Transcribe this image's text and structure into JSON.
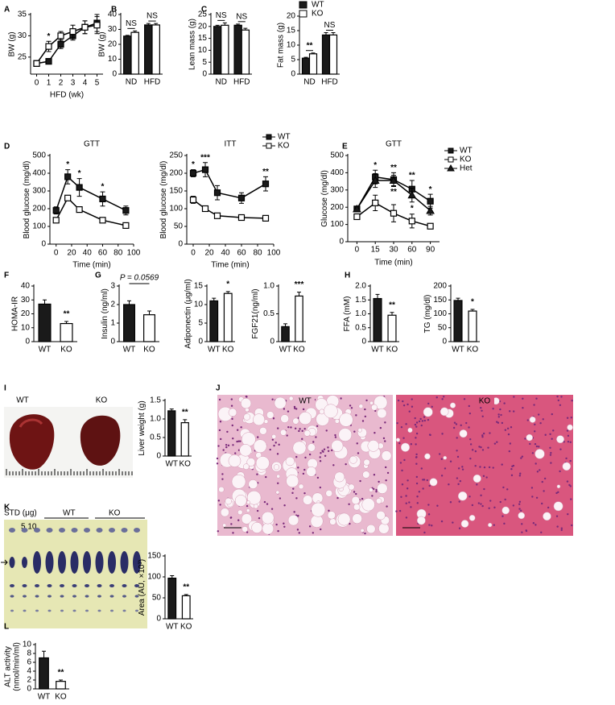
{
  "chart_data": [
    {
      "type": "line",
      "panel": "A",
      "ylabel": "BW (g)",
      "xlabel": "HFD (wk)",
      "x": [
        0,
        1,
        2,
        3,
        4,
        5
      ],
      "xlim": [
        -0.5,
        5.5
      ],
      "xticks": [
        0,
        1,
        2,
        3,
        4,
        5
      ],
      "ylim": [
        21,
        35
      ],
      "yticks": [
        25,
        30,
        35
      ],
      "series": [
        {
          "marker": "square",
          "fill": "#1a1a1a",
          "values": [
            23.5,
            24,
            28,
            30,
            32,
            33
          ],
          "errors": [
            0.5,
            0.5,
            1,
            1,
            1.5,
            2
          ],
          "significance": [
            null,
            "*",
            null,
            null,
            null,
            null
          ]
        },
        {
          "marker": "square",
          "fill": "#ffffff",
          "values": [
            23.5,
            27.5,
            30,
            31,
            32,
            32.5
          ],
          "errors": [
            0.5,
            1.2,
            1,
            1.5,
            1.5,
            2
          ]
        }
      ]
    },
    {
      "type": "bar",
      "panel": "B",
      "ylabel": "BW (g)",
      "categories": [
        "ND",
        "HFD"
      ],
      "ylim": [
        0,
        40
      ],
      "yticks": [
        0,
        10,
        20,
        30,
        40
      ],
      "brackets": true,
      "significance": [
        "NS",
        "NS"
      ],
      "series": [
        {
          "color": "#1a1a1a",
          "values": [
            25.5,
            33
          ],
          "errors": [
            0.5,
            1
          ]
        },
        {
          "color": "#ffffff",
          "values": [
            28,
            33
          ],
          "errors": [
            1,
            1
          ]
        }
      ]
    },
    {
      "type": "bar",
      "panel": "C",
      "ylabel": "Lean mass (g)",
      "categories": [
        "ND",
        "HFD"
      ],
      "ylim": [
        0,
        25
      ],
      "yticks": [
        0,
        5,
        10,
        15,
        20,
        25
      ],
      "brackets": true,
      "significance": [
        "NS",
        "NS"
      ],
      "series": [
        {
          "color": "#1a1a1a",
          "values": [
            20,
            20.5
          ],
          "errors": [
            0.5,
            0.5
          ]
        },
        {
          "color": "#ffffff",
          "values": [
            20.5,
            18.5
          ],
          "errors": [
            1,
            0.7
          ]
        }
      ]
    },
    {
      "type": "bar",
      "ylabel": "Fat mass (g)",
      "categories": [
        "ND",
        "HFD"
      ],
      "ylim": [
        0,
        20
      ],
      "yticks": [
        0,
        5,
        10,
        15,
        20
      ],
      "brackets": true,
      "significance": [
        "**",
        "NS"
      ],
      "legend": "above",
      "series": [
        {
          "name": "WT",
          "color": "#1a1a1a",
          "values": [
            5.5,
            13.5
          ],
          "errors": [
            0.3,
            0.8
          ]
        },
        {
          "name": "KO",
          "color": "#ffffff",
          "values": [
            7,
            13.5
          ],
          "errors": [
            0.3,
            0.8
          ]
        }
      ]
    },
    {
      "type": "line",
      "panel": "D",
      "title": "GTT",
      "ylabel": "Blood glucose (mg/dl)",
      "xlabel": "Time (min)",
      "x": [
        0,
        15,
        30,
        60,
        90
      ],
      "xlim": [
        -8,
        100
      ],
      "xticks": [
        0,
        20,
        40,
        60,
        80,
        100
      ],
      "ylim": [
        0,
        500
      ],
      "yticks": [
        0,
        100,
        200,
        300,
        400,
        500
      ],
      "series": [
        {
          "marker": "square",
          "fill": "#1a1a1a",
          "values": [
            190,
            380,
            320,
            255,
            190
          ],
          "errors": [
            20,
            40,
            50,
            40,
            25
          ],
          "significance": [
            null,
            "*",
            "*",
            "*",
            null
          ]
        },
        {
          "marker": "square",
          "fill": "#ffffff",
          "values": [
            135,
            260,
            195,
            135,
            105
          ],
          "errors": [
            10,
            15,
            10,
            10,
            10
          ]
        }
      ]
    },
    {
      "type": "line",
      "title": "ITT",
      "ylabel": "Blood glucose (mg/dl)",
      "xlabel": "Time (min)",
      "x": [
        0,
        15,
        30,
        60,
        90
      ],
      "xlim": [
        -8,
        100
      ],
      "xticks": [
        0,
        20,
        40,
        60,
        80,
        100
      ],
      "ylim": [
        0,
        250
      ],
      "yticks": [
        0,
        50,
        100,
        150,
        200,
        250
      ],
      "legend": "top-right",
      "series": [
        {
          "name": "WT",
          "marker": "square",
          "fill": "#1a1a1a",
          "values": [
            200,
            210,
            145,
            130,
            170
          ],
          "errors": [
            10,
            20,
            20,
            15,
            20
          ],
          "significance": [
            "*",
            "***",
            null,
            null,
            "**"
          ]
        },
        {
          "name": "KO",
          "marker": "square",
          "fill": "#ffffff",
          "values": [
            125,
            100,
            80,
            75,
            73
          ],
          "errors": [
            10,
            8,
            5,
            5,
            5
          ]
        }
      ]
    },
    {
      "type": "line",
      "panel": "E",
      "title": "GTT",
      "ylabel": "Glucose (mg/dl)",
      "xlabel": "Time (min)",
      "categories": [
        "0",
        "15",
        "30",
        "60",
        "90"
      ],
      "ylim": [
        0,
        500
      ],
      "yticks": [
        0,
        100,
        200,
        300,
        400,
        500
      ],
      "legend": "top-right",
      "series": [
        {
          "name": "WT",
          "marker": "square",
          "fill": "#1a1a1a",
          "values": [
            190,
            375,
            360,
            305,
            235
          ],
          "errors": [
            15,
            40,
            40,
            50,
            40
          ],
          "significance": [
            null,
            "*",
            "**",
            "**",
            "*"
          ]
        },
        {
          "name": "KO",
          "marker": "square",
          "fill": "#ffffff",
          "values": [
            145,
            225,
            165,
            120,
            90
          ],
          "errors": [
            15,
            45,
            50,
            40,
            15
          ]
        },
        {
          "name": "Het",
          "marker": "triangle",
          "fill": "#1a1a1a",
          "values": [
            190,
            355,
            355,
            270,
            180
          ],
          "errors": [
            15,
            40,
            30,
            40,
            25
          ],
          "significance_below": [
            null,
            null,
            "**",
            "*",
            null
          ]
        }
      ]
    },
    {
      "type": "bar",
      "panel": "F",
      "ylabel": "HOMA-IR",
      "categories": [
        "WT",
        "KO"
      ],
      "ylim": [
        0,
        40
      ],
      "yticks": [
        0,
        10,
        20,
        30,
        40
      ],
      "significance": [
        null,
        "**"
      ],
      "series": [
        {
          "colors": [
            "#1a1a1a",
            "#ffffff"
          ],
          "values": [
            27,
            13
          ],
          "errors": [
            3,
            1.5
          ]
        }
      ]
    },
    {
      "type": "bar",
      "panel": "G",
      "ylabel": "Insulin (ng/ml)",
      "categories": [
        "WT",
        "KO"
      ],
      "ylim": [
        0,
        3
      ],
      "yticks": [
        0,
        1,
        2,
        3
      ],
      "bracket_label": "P = 0.0569",
      "series": [
        {
          "colors": [
            "#1a1a1a",
            "#ffffff"
          ],
          "values": [
            2.0,
            1.45
          ],
          "errors": [
            0.2,
            0.2
          ]
        }
      ]
    },
    {
      "type": "bar",
      "ylabel": "Adiponectin (μg/ml)",
      "categories": [
        "WT",
        "KO"
      ],
      "ylim": [
        0,
        15
      ],
      "yticks": [
        0,
        5,
        10,
        15
      ],
      "significance": [
        null,
        "*"
      ],
      "series": [
        {
          "colors": [
            "#1a1a1a",
            "#ffffff"
          ],
          "values": [
            11,
            13
          ],
          "errors": [
            0.7,
            0.5
          ]
        }
      ]
    },
    {
      "type": "bar",
      "ylabel": "FGF21(ng/ml)",
      "categories": [
        "WT",
        "KO"
      ],
      "ylim": [
        0,
        1
      ],
      "yticks": [
        0,
        0.5,
        {
          "value": 1,
          "label": "1.0"
        }
      ],
      "significance": [
        null,
        "***"
      ],
      "series": [
        {
          "colors": [
            "#1a1a1a",
            "#ffffff"
          ],
          "values": [
            0.27,
            0.82
          ],
          "errors": [
            0.05,
            0.07
          ]
        }
      ]
    },
    {
      "type": "bar",
      "panel": "H",
      "ylabel": "FFA (mM)",
      "categories": [
        "WT",
        "KO"
      ],
      "ylim": [
        0,
        2
      ],
      "yticks": [
        0,
        0.5,
        {
          "value": 1,
          "label": "1.0"
        },
        1.5,
        {
          "value": 2,
          "label": "2.0"
        }
      ],
      "significance": [
        null,
        "**"
      ],
      "series": [
        {
          "colors": [
            "#1a1a1a",
            "#ffffff"
          ],
          "values": [
            1.55,
            0.95
          ],
          "errors": [
            0.15,
            0.1
          ]
        }
      ]
    },
    {
      "type": "bar",
      "ylabel": "TG (mg/dl)",
      "categories": [
        "WT",
        "KO"
      ],
      "ylim": [
        0,
        200
      ],
      "yticks": [
        0,
        50,
        100,
        150,
        200
      ],
      "significance": [
        null,
        "*"
      ],
      "series": [
        {
          "colors": [
            "#1a1a1a",
            "#ffffff"
          ],
          "values": [
            148,
            110
          ],
          "errors": [
            8,
            6
          ]
        }
      ]
    },
    {
      "type": "bar",
      "panel": "I",
      "ylabel": "Liver weight (g)",
      "categories": [
        "WT",
        "KO"
      ],
      "ylim": [
        0,
        1.5
      ],
      "yticks": [
        0,
        0.5,
        {
          "value": 1,
          "label": "1.0"
        },
        1.5
      ],
      "significance": [
        null,
        "**"
      ],
      "series": [
        {
          "colors": [
            "#1a1a1a",
            "#ffffff"
          ],
          "values": [
            1.22,
            0.9
          ],
          "errors": [
            0.05,
            0.08
          ]
        }
      ]
    },
    {
      "type": "bar",
      "panel": "K",
      "ylabel": "Area (AU, ×10³)",
      "categories": [
        "WT",
        "KO"
      ],
      "ylim": [
        0,
        150
      ],
      "yticks": [
        0,
        50,
        100,
        150
      ],
      "significance": [
        null,
        "**"
      ],
      "series": [
        {
          "colors": [
            "#1a1a1a",
            "#ffffff"
          ],
          "values": [
            97,
            55
          ],
          "errors": [
            6,
            3
          ]
        }
      ]
    },
    {
      "type": "bar",
      "panel": "L",
      "ylabel": [
        "ALT activity",
        "(nmol/min/ml)"
      ],
      "categories": [
        "WT",
        "KO"
      ],
      "ylim": [
        0,
        10
      ],
      "yticks": [
        0,
        2,
        4,
        6,
        8,
        10
      ],
      "significance": [
        null,
        "**"
      ],
      "series": [
        {
          "colors": [
            "#1a1a1a",
            "#ffffff"
          ],
          "values": [
            7,
            1.7
          ],
          "errors": [
            1.5,
            0.3
          ]
        }
      ]
    }
  ],
  "photos": {
    "liver": {
      "labels": [
        "WT",
        "KO"
      ]
    },
    "histology": {
      "panel": "J",
      "labels": [
        "WT",
        "KO"
      ]
    },
    "tlc": {
      "std_label": "STD (μg)",
      "std_amounts": "5 10",
      "groups": [
        "WT",
        "KO"
      ]
    }
  }
}
